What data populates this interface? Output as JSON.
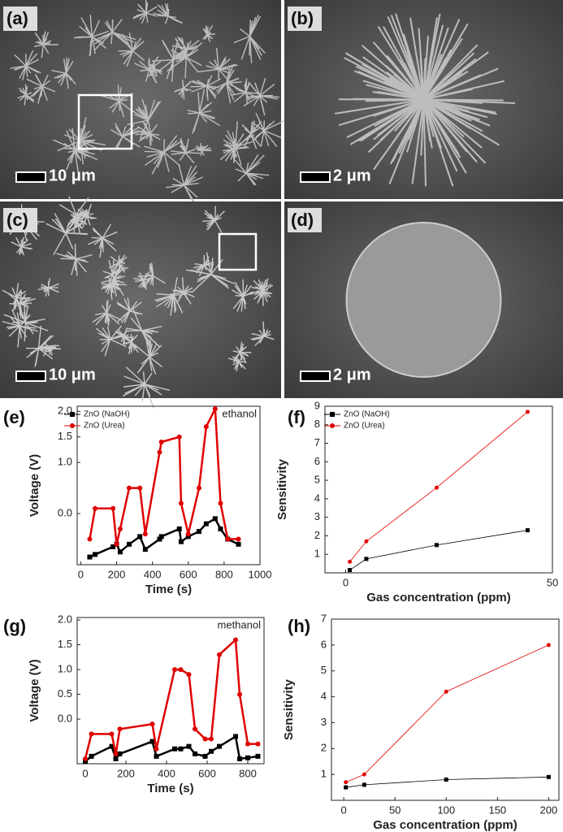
{
  "images": [
    {
      "label": "(a)",
      "scale": "10 μm"
    },
    {
      "label": "(b)",
      "scale": "2 μm"
    },
    {
      "label": "(c)",
      "scale": "10 μm"
    },
    {
      "label": "(d)",
      "scale": "2 μm"
    }
  ],
  "chart_data": [
    {
      "type": "line",
      "label": "(e)",
      "annotation": "ethanol",
      "x_label": "Time (s)",
      "y_label": "Voltage (V)",
      "x": [
        50,
        80,
        180,
        200,
        220,
        270,
        330,
        360,
        440,
        450,
        550,
        560,
        600,
        660,
        700,
        750,
        780,
        820,
        880
      ],
      "series": [
        {
          "name": "ZnO (NaOH)",
          "color": "#000000",
          "marker": "square",
          "values": [
            -0.85,
            -0.8,
            -0.65,
            -0.6,
            -0.75,
            -0.6,
            -0.45,
            -0.7,
            -0.5,
            -0.45,
            -0.3,
            -0.55,
            -0.45,
            -0.35,
            -0.2,
            -0.1,
            -0.3,
            -0.5,
            -0.6
          ]
        },
        {
          "name": "ZnO (Urea)",
          "color": "#e00000",
          "marker": "circle",
          "values": [
            -0.5,
            0.1,
            0.1,
            -0.6,
            -0.3,
            0.5,
            0.5,
            -0.4,
            1.2,
            1.4,
            1.5,
            0.2,
            -0.4,
            0.5,
            1.7,
            2.05,
            0.2,
            -0.5,
            -0.5
          ]
        }
      ],
      "xlim": [
        -20,
        1000
      ],
      "xticks": [
        0,
        200,
        400,
        600,
        800,
        1000
      ],
      "ylim": [
        -1.0,
        2.1
      ],
      "yticks": [
        {
          "value": 0,
          "label": "0.0"
        },
        {
          "value": 1,
          "label": "1.0"
        },
        {
          "value": 1.5,
          "label": "1.5"
        },
        {
          "value": 2,
          "label": "2.0"
        }
      ],
      "legend": "upper left"
    },
    {
      "type": "line",
      "label": "(f)",
      "x_label": "Gas concentration (ppm)",
      "y_label": "Sensitivity",
      "x": [
        1,
        5,
        22,
        44
      ],
      "series": [
        {
          "name": "ZnO (NaOH)",
          "color": "#000000",
          "marker": "square",
          "values": [
            0.15,
            0.75,
            1.5,
            2.3
          ]
        },
        {
          "name": "ZnO (Urea)",
          "color": "#e00000",
          "marker": "circle",
          "values": [
            0.6,
            1.7,
            4.6,
            8.7
          ]
        }
      ],
      "xlim": [
        -5,
        50
      ],
      "xticks": [
        0,
        50
      ],
      "ylim": [
        0,
        9
      ],
      "yticks": [
        1,
        2,
        3,
        4,
        5,
        6,
        7,
        8,
        9
      ],
      "legend": "upper left"
    },
    {
      "type": "line",
      "label": "(g)",
      "annotation": "methanol",
      "x_label": "Time (s)",
      "y_label": "Voltage (V)",
      "x": [
        0,
        30,
        130,
        150,
        170,
        330,
        350,
        440,
        470,
        510,
        540,
        590,
        620,
        660,
        740,
        760,
        800,
        850
      ],
      "series": [
        {
          "color": "#000000",
          "marker": "square",
          "values": [
            -0.85,
            -0.75,
            -0.55,
            -0.8,
            -0.7,
            -0.45,
            -0.75,
            -0.6,
            -0.6,
            -0.55,
            -0.7,
            -0.75,
            -0.65,
            -0.55,
            -0.35,
            -0.8,
            -0.78,
            -0.75
          ]
        },
        {
          "color": "#e00000",
          "marker": "circle",
          "values": [
            -0.8,
            -0.3,
            -0.3,
            -0.7,
            -0.2,
            -0.1,
            -0.6,
            1.0,
            1.0,
            0.9,
            -0.2,
            -0.4,
            -0.4,
            1.3,
            1.6,
            0.5,
            -0.5,
            -0.5
          ]
        }
      ],
      "xlim": [
        -40,
        880
      ],
      "xticks": [
        0,
        200,
        400,
        600,
        800
      ],
      "ylim": [
        -0.9,
        2.05
      ],
      "yticks": [
        {
          "value": 0,
          "label": "0.0"
        },
        0.5,
        {
          "value": 1,
          "label": "1.0"
        },
        1.5,
        {
          "value": 2,
          "label": "2.0"
        }
      ]
    },
    {
      "type": "line",
      "label": "(h)",
      "x_label": "Gas concentration (ppm)",
      "y_label": "Sensitivity",
      "x": [
        2,
        20,
        100,
        200
      ],
      "series": [
        {
          "color": "#000000",
          "marker": "square",
          "values": [
            0.5,
            0.6,
            0.8,
            0.9
          ]
        },
        {
          "color": "#e00000",
          "marker": "circle",
          "values": [
            0.7,
            1.0,
            4.2,
            6.0
          ]
        }
      ],
      "xlim": [
        -12,
        210
      ],
      "xticks": [
        0,
        50,
        100,
        150,
        200
      ],
      "ylim": [
        0,
        7
      ],
      "yticks": [
        1,
        2,
        3,
        4,
        5,
        6,
        7
      ]
    }
  ]
}
